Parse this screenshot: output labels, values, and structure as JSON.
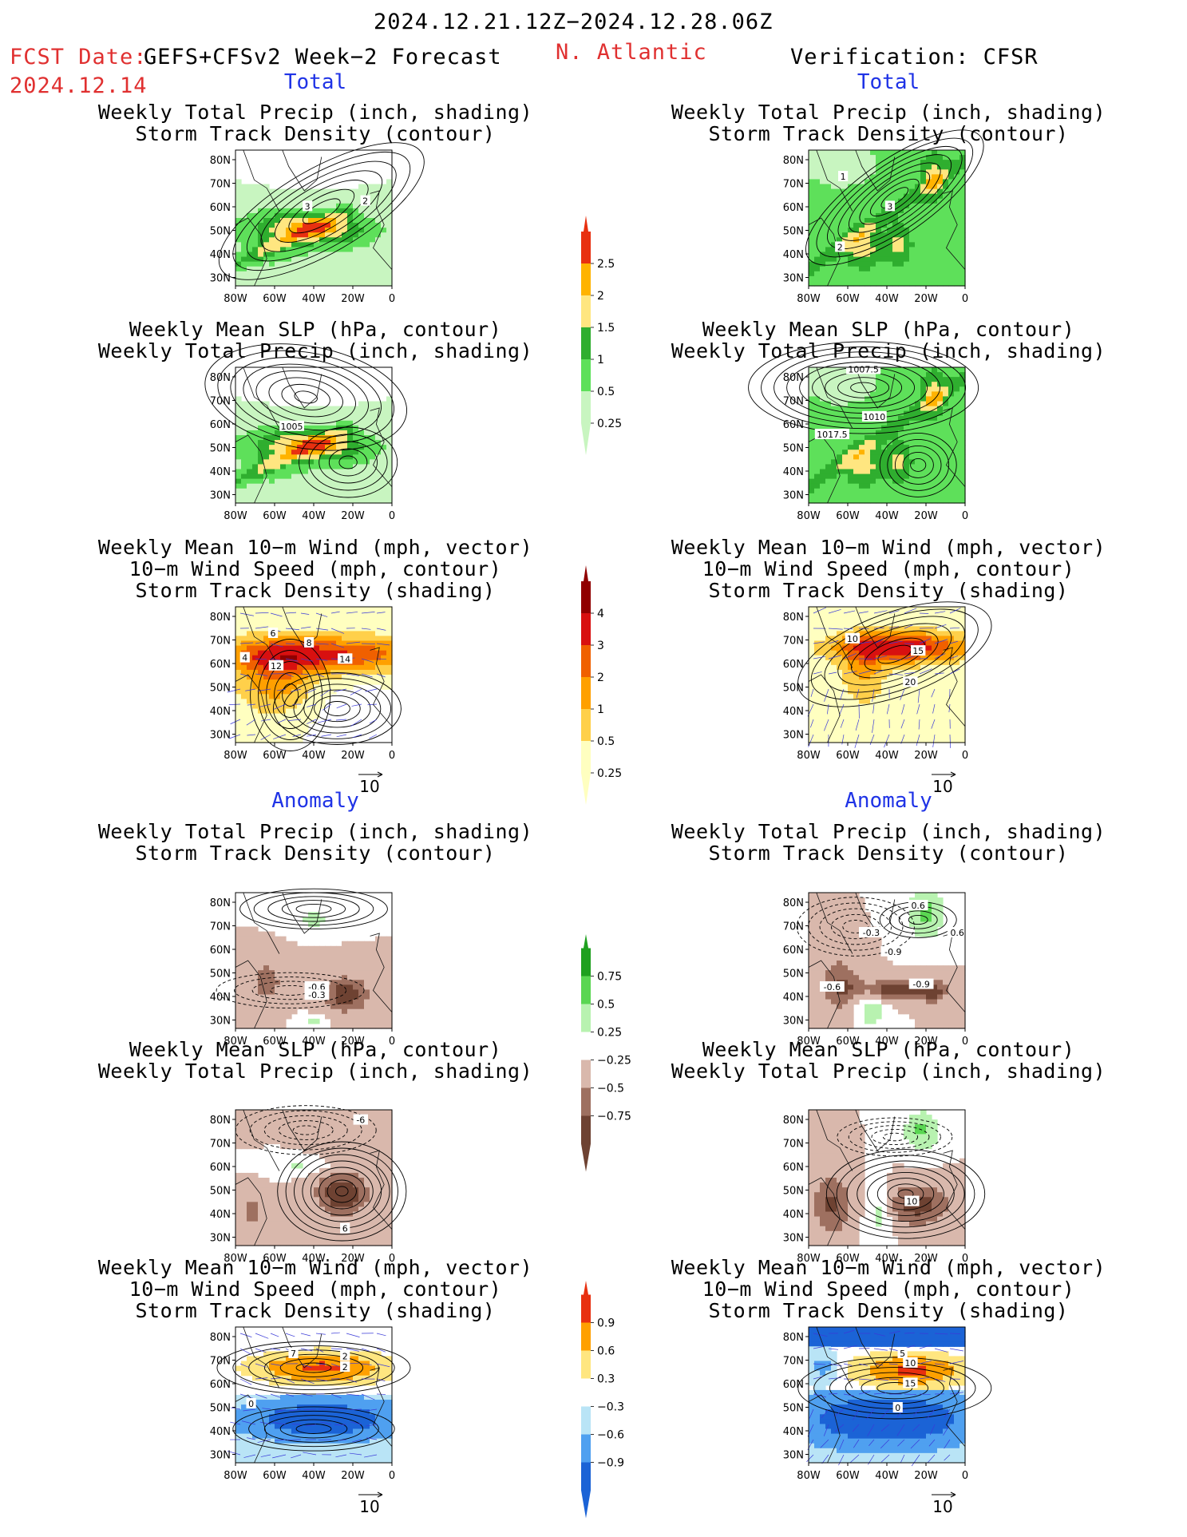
{
  "header": {
    "date_range": "2024.12.21.12Z−2024.12.28.06Z",
    "fcst_label": "FCST Date:",
    "fcst_model": "GEFS+CFSv2 Week−2 Forecast",
    "fcst_date": "2024.12.14",
    "region": "N. Atlantic",
    "verification": "Verification: CFSR"
  },
  "sections": {
    "total": "Total",
    "anomaly": "Anomaly"
  },
  "titles": {
    "precip_track": [
      "Weekly Total Precip (inch, shading)",
      "Storm Track Density (contour)"
    ],
    "slp_precip": [
      "Weekly Mean SLP (hPa, contour)",
      "Weekly Total Precip (inch, shading)"
    ],
    "wind_track": [
      "Weekly Mean 10−m Wind (mph, vector)",
      "10−m Wind Speed (mph, contour)",
      "Storm Track Density (shading)"
    ]
  },
  "axes": {
    "lat_labels": [
      "80N",
      "70N",
      "60N",
      "50N",
      "40N",
      "30N"
    ],
    "lon_labels": [
      "80W",
      "60W",
      "40W",
      "20W",
      "0"
    ]
  },
  "vector_ref": "10",
  "colors": {
    "precip": [
      "#c8f5c0",
      "#5ee05a",
      "#2fae2f",
      "#ffe680",
      "#ffb300",
      "#e83010"
    ],
    "track": [
      "#ffffc0",
      "#ffd04a",
      "#ffa000",
      "#f06000",
      "#d81010",
      "#900000"
    ],
    "precip_anom": [
      "#6e4232",
      "#9e7060",
      "#d9b8ac",
      "#ffffff",
      "#b8f2b0",
      "#5ad652",
      "#1fa01f"
    ],
    "track_anom": [
      "#1b63d6",
      "#4fa0f0",
      "#b9e4f6",
      "#ffffff",
      "#ffe680",
      "#ffa000",
      "#e83010"
    ]
  },
  "chart_data": [
    {
      "type": "heatmap",
      "panel": "forecast-total-precip-track",
      "title": [
        "Weekly Total Precip (inch, shading)",
        "Storm Track Density (contour)"
      ],
      "legend_levels": [
        "0.25",
        "0.5",
        "1",
        "1.5",
        "2",
        "2.5"
      ],
      "contour_labels": [
        "3",
        "2"
      ]
    },
    {
      "type": "heatmap",
      "panel": "verification-total-precip-track",
      "title": [
        "Weekly Total Precip (inch, shading)",
        "Storm Track Density (contour)"
      ],
      "legend_levels": [
        "0.25",
        "0.5",
        "1",
        "1.5",
        "2",
        "2.5"
      ],
      "contour_labels": [
        "1",
        "3",
        "2"
      ]
    },
    {
      "type": "heatmap",
      "panel": "forecast-total-slp-precip",
      "title": [
        "Weekly Mean SLP (hPa, contour)",
        "Weekly Total Precip (inch, shading)"
      ],
      "legend_levels": [
        "0.25",
        "0.5",
        "1",
        "1.5",
        "2",
        "2.5"
      ],
      "contour_labels": [
        "1005"
      ]
    },
    {
      "type": "heatmap",
      "panel": "verification-total-slp-precip",
      "title": [
        "Weekly Mean SLP (hPa, contour)",
        "Weekly Total Precip (inch, shading)"
      ],
      "legend_levels": [
        "0.25",
        "0.5",
        "1",
        "1.5",
        "2",
        "2.5"
      ],
      "contour_labels": [
        "1007.5",
        "1010",
        "1017.5"
      ]
    },
    {
      "type": "heatmap",
      "panel": "forecast-total-wind-track",
      "title": [
        "Weekly Mean 10−m Wind (mph, vector)",
        "10−m Wind Speed (mph, contour)",
        "Storm Track Density (shading)"
      ],
      "legend_levels": [
        "0.25",
        "0.5",
        "1",
        "2",
        "3",
        "4"
      ],
      "contour_labels": [
        "6",
        "8",
        "4",
        "12",
        "14"
      ],
      "vector_ref": "10"
    },
    {
      "type": "heatmap",
      "panel": "verification-total-wind-track",
      "title": [
        "Weekly Mean 10−m Wind (mph, vector)",
        "10−m Wind Speed (mph, contour)",
        "Storm Track Density (shading)"
      ],
      "legend_levels": [
        "0.25",
        "0.5",
        "1",
        "2",
        "3",
        "4"
      ],
      "contour_labels": [
        "10",
        "15",
        "20"
      ],
      "vector_ref": "10"
    },
    {
      "type": "heatmap",
      "panel": "forecast-anom-precip-track",
      "title": [
        "Weekly Total Precip (inch, shading)",
        "Storm Track Density (contour)"
      ],
      "legend_levels": [
        "0.75",
        "0.5",
        "0.25",
        "−0.25",
        "−0.5",
        "−0.75"
      ],
      "contour_labels": [
        "-0.6",
        "-0.3"
      ]
    },
    {
      "type": "heatmap",
      "panel": "verification-anom-precip-track",
      "title": [
        "Weekly Total Precip (inch, shading)",
        "Storm Track Density (contour)"
      ],
      "legend_levels": [
        "0.75",
        "0.5",
        "0.25",
        "−0.25",
        "−0.5",
        "−0.75"
      ],
      "contour_labels": [
        "0.6",
        "-0.3",
        "-0.9",
        "0.6",
        "-0.6",
        "-0.9"
      ]
    },
    {
      "type": "heatmap",
      "panel": "forecast-anom-slp-precip",
      "title": [
        "Weekly Mean SLP (hPa, contour)",
        "Weekly Total Precip (inch, shading)"
      ],
      "legend_levels": [
        "0.75",
        "0.5",
        "0.25",
        "−0.25",
        "−0.5",
        "−0.75"
      ],
      "contour_labels": [
        "-6",
        "6"
      ]
    },
    {
      "type": "heatmap",
      "panel": "verification-anom-slp-precip",
      "title": [
        "Weekly Mean SLP (hPa, contour)",
        "Weekly Total Precip (inch, shading)"
      ],
      "legend_levels": [
        "0.75",
        "0.5",
        "0.25",
        "−0.25",
        "−0.5",
        "−0.75"
      ],
      "contour_labels": [
        "10"
      ]
    },
    {
      "type": "heatmap",
      "panel": "forecast-anom-wind-track",
      "title": [
        "Weekly Mean 10−m Wind (mph, vector)",
        "10−m Wind Speed (mph, contour)",
        "Storm Track Density (shading)"
      ],
      "legend_levels": [
        "0.9",
        "0.6",
        "0.3",
        "−0.3",
        "−0.6",
        "−0.9"
      ],
      "contour_labels": [
        "7",
        "2",
        "2",
        "0"
      ],
      "vector_ref": "10"
    },
    {
      "type": "heatmap",
      "panel": "verification-anom-wind-track",
      "title": [
        "Weekly Mean 10−m Wind (mph, vector)",
        "10−m Wind Speed (mph, contour)",
        "Storm Track Density (shading)"
      ],
      "legend_levels": [
        "0.9",
        "0.6",
        "0.3",
        "−0.3",
        "−0.6",
        "−0.9"
      ],
      "contour_labels": [
        "5",
        "10",
        "15",
        "0"
      ],
      "vector_ref": "10"
    }
  ]
}
